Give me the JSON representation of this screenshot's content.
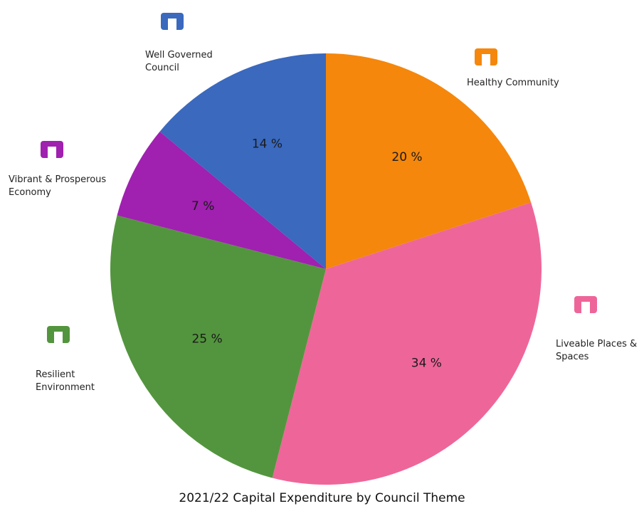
{
  "chart_data": {
    "type": "pie",
    "title": "2021/22 Capital Expenditure by Council Theme",
    "categories": [
      "Healthy Community",
      "Liveable Places & Spaces",
      "Resilient Environment",
      "Vibrant & Prosperous Economy",
      "Well Governed Council"
    ],
    "values": [
      20,
      34,
      25,
      7,
      14
    ],
    "value_labels": [
      "20 %",
      "34 %",
      "25 %",
      "7 %",
      "14 %"
    ],
    "colors": [
      "#f5870c",
      "#ee6699",
      "#53953e",
      "#a020b0",
      "#3a69be"
    ]
  }
}
